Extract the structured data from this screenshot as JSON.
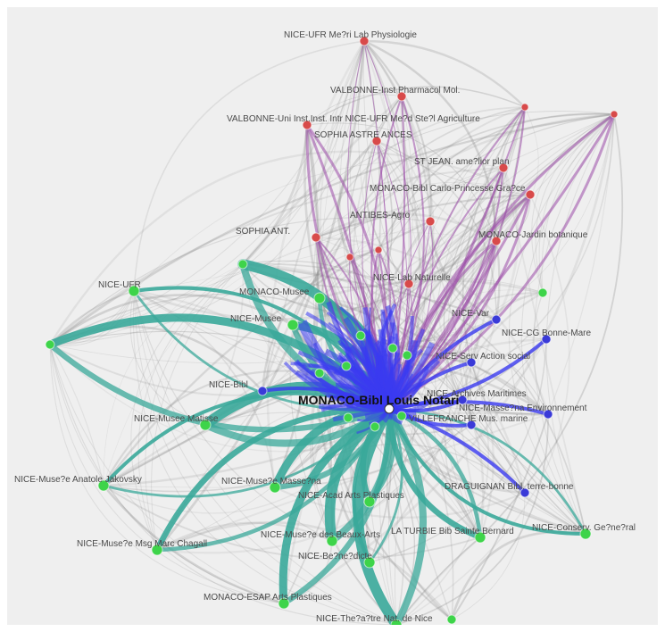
{
  "graph": {
    "colors": {
      "background": "#efefef",
      "edge_gray": "#8a8a8a",
      "edge_teal": "#3aa89a",
      "edge_blue": "#3a3af0",
      "edge_purple": "#9a4aa8",
      "node_green": "#3ed44a",
      "node_red": "#d84a4a",
      "node_blue": "#3a3ad8",
      "center_node": "#ffffff"
    },
    "center": {
      "label": "MONACO-Bibl Louis Notari"
    },
    "red_nodes": [
      "NICE-UFR Me?ri Lab Physiologie",
      "VALBONNE-Inst Pharmacol Mol.",
      "VALBONNE-Uni Inst.Inst. Intr NICE-UFR Me?d Ste?l Agriculture",
      "SOPHIA ASTRE ANCES",
      "ST JEAN. ame?lior plan",
      "MONACO-Bibl Carlo-Princesse Gra?ce",
      "ANTIBES-Agro",
      "SOPHIA ANT.",
      "MONACO-Jardin botanique",
      "NICE-Lab Naturelle"
    ],
    "green_nodes": [
      "NICE-UFR",
      "MONACO-Musee",
      "NICE-Musee",
      "NICE-Musee Matisse",
      "NICE-Muse?e Anatole Jakovsky",
      "NICE-Muse?e Msg Marc Chagall",
      "NICE-Muse?e Masse?na",
      "NICE-Muse?e des Beaux-Arts",
      "NICE-Be?ne?dicte",
      "NICE-Acad Arts Plastiques",
      "MONACO-ESAP Arts Plastiques",
      "NICE-The?a?tre Nat. de Nice",
      "NICE-Conserv. Ge?ne?ral",
      "LA TURBIE Bib Sainte Bernard"
    ],
    "blue_nodes": [
      "NICE-Var",
      "NICE-CG Bonne-Mare",
      "NICE-Serv Action social",
      "NICE-Archives Maritimes",
      "NICE-Masse?na Environnement",
      "VILLEFRANCHE Mus. marine",
      "DRAGUIGNAN Bibl. terre-bonne",
      "NICE-Bibl"
    ]
  }
}
